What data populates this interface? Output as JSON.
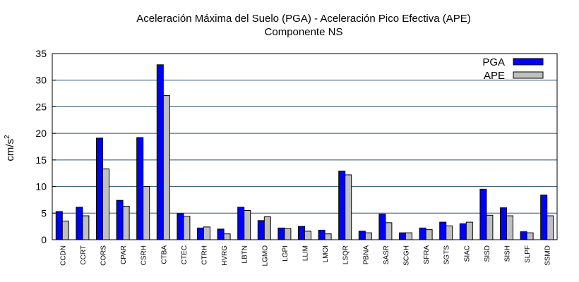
{
  "chart_data": {
    "type": "bar",
    "title": "Aceleración Máxima del Suelo (PGA) -  Aceleración Pico Efectiva (APE)",
    "subtitle": "Componente NS",
    "ylabel": "cm/s",
    "ylabel_sup": "2",
    "ylim": [
      0,
      35
    ],
    "yticks": [
      0,
      5,
      10,
      15,
      20,
      25,
      30,
      35
    ],
    "grid": true,
    "legend_position": "top-right",
    "categories": [
      "CCDN",
      "CCRT",
      "CORS",
      "CPAR",
      "CSRH",
      "CTBA",
      "CTEC",
      "CTRH",
      "HVRG",
      "LBTN",
      "LGMO",
      "LGPI",
      "LLIM",
      "LMOI",
      "LSQR",
      "PBNA",
      "SASR",
      "SCGH",
      "SFRA",
      "SGTS",
      "SIAC",
      "SISD",
      "SISH",
      "SLPF",
      "SSMD"
    ],
    "series": [
      {
        "name": "PGA",
        "color": "#0000ff",
        "values": [
          5.3,
          6.1,
          19.1,
          7.4,
          19.2,
          32.9,
          4.9,
          2.2,
          2.0,
          6.1,
          3.6,
          2.2,
          2.5,
          1.8,
          12.9,
          1.6,
          4.8,
          1.3,
          2.2,
          3.3,
          3.0,
          9.5,
          6.0,
          1.5,
          8.4
        ]
      },
      {
        "name": "APE",
        "color": "#c0c0c0",
        "values": [
          3.5,
          4.5,
          13.3,
          6.3,
          10.0,
          27.1,
          4.4,
          2.4,
          1.1,
          5.5,
          4.3,
          2.1,
          1.6,
          1.1,
          12.2,
          1.3,
          3.2,
          1.3,
          1.9,
          2.6,
          3.3,
          4.6,
          4.5,
          1.3,
          4.5
        ]
      }
    ]
  }
}
